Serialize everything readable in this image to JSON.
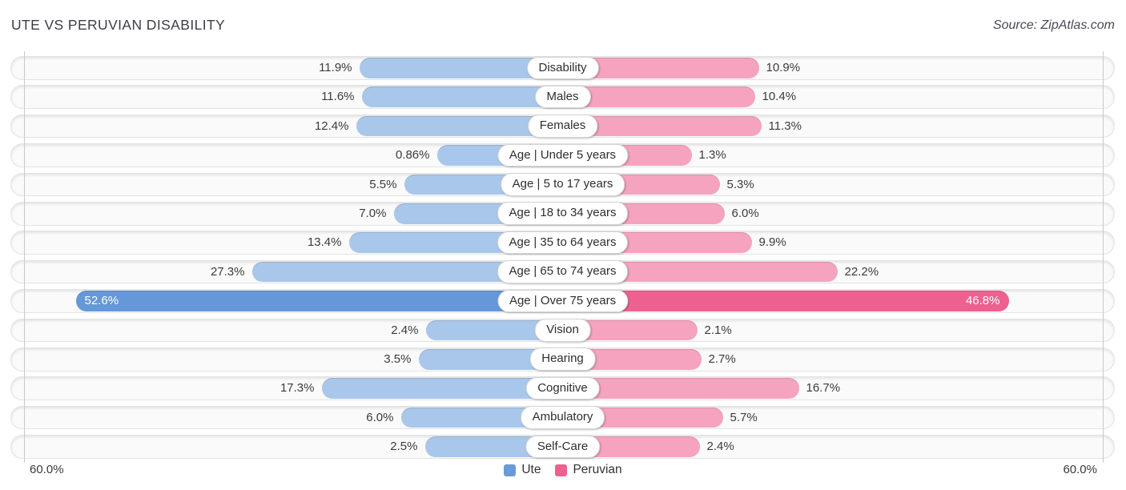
{
  "header": {
    "title": "UTE VS PERUVIAN DISABILITY",
    "source": "Source: ZipAtlas.com"
  },
  "chart_data": {
    "type": "bar",
    "variant": "diverging-horizontal-tornado",
    "categories": [
      "Disability",
      "Males",
      "Females",
      "Age | Under 5 years",
      "Age | 5 to 17 years",
      "Age | 18 to 34 years",
      "Age | 35 to 64 years",
      "Age | 65 to 74 years",
      "Age | Over 75 years",
      "Vision",
      "Hearing",
      "Cognitive",
      "Ambulatory",
      "Self-Care"
    ],
    "series": [
      {
        "name": "Ute",
        "side": "left",
        "values": [
          11.9,
          11.6,
          12.4,
          0.86,
          5.5,
          7.0,
          13.4,
          27.3,
          52.6,
          2.4,
          3.5,
          17.3,
          6.0,
          2.5
        ],
        "labels": [
          "11.9%",
          "11.6%",
          "12.4%",
          "0.86%",
          "5.5%",
          "7.0%",
          "13.4%",
          "27.3%",
          "52.6%",
          "2.4%",
          "3.5%",
          "17.3%",
          "6.0%",
          "2.5%"
        ]
      },
      {
        "name": "Peruvian",
        "side": "right",
        "values": [
          10.9,
          10.4,
          11.3,
          1.3,
          5.3,
          6.0,
          9.9,
          22.2,
          46.8,
          2.1,
          2.7,
          16.7,
          5.7,
          2.4
        ],
        "labels": [
          "10.9%",
          "10.4%",
          "11.3%",
          "1.3%",
          "5.3%",
          "6.0%",
          "9.9%",
          "22.2%",
          "46.8%",
          "2.1%",
          "2.7%",
          "16.7%",
          "5.7%",
          "2.4%"
        ]
      }
    ],
    "highlight_index": 8,
    "axis": {
      "max": 60,
      "left_label": "60.0%",
      "right_label": "60.0%"
    },
    "legend": [
      {
        "label": "Ute",
        "color": "#6a9bd8"
      },
      {
        "label": "Peruvian",
        "color": "#ee6090"
      }
    ],
    "colors": {
      "ute_light": "#a9c7ea",
      "ute_strong": "#6598d9",
      "peruvian_light": "#f6a3bf",
      "peruvian_strong": "#ee6090",
      "track": "#fafafa",
      "gridline": "#c9c9c9"
    }
  }
}
